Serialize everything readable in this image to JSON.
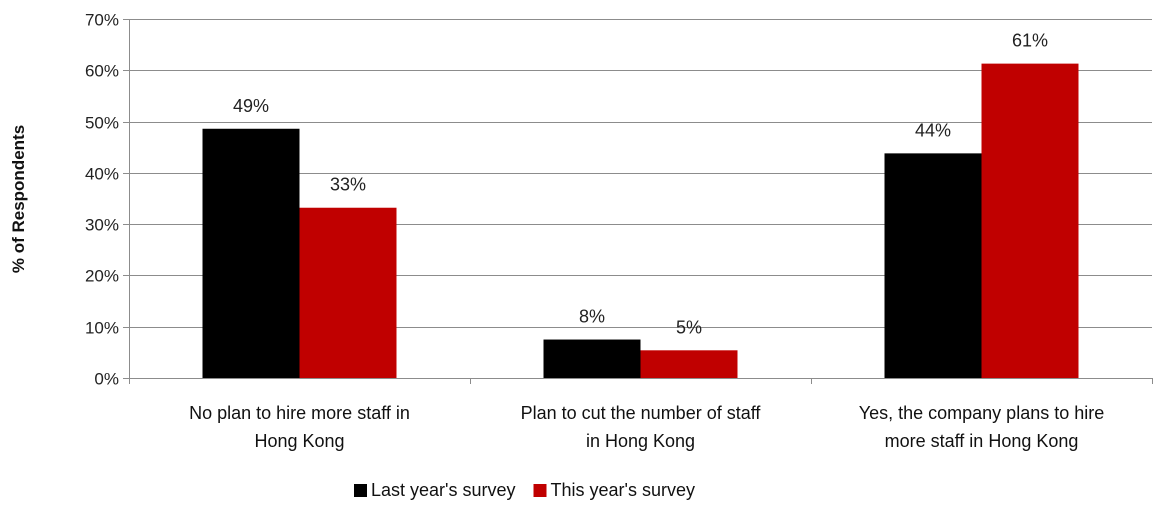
{
  "chart_data": {
    "type": "bar",
    "ylabel": "% of Respondents",
    "ylim": [
      0,
      70
    ],
    "yticks": [
      0,
      10,
      20,
      30,
      40,
      50,
      60,
      70
    ],
    "tick_suffix": "%",
    "grid": true,
    "legend_position": "bottom",
    "categories": [
      [
        "No plan to hire more staff in",
        "Hong Kong"
      ],
      [
        "Plan to cut the number of staff",
        "in Hong Kong"
      ],
      [
        "Yes, the company plans to hire",
        "more staff in Hong Kong"
      ]
    ],
    "series": [
      {
        "name": "Last year's survey",
        "color": "#000000",
        "values": [
          48.6,
          7.5,
          43.8
        ],
        "labels": [
          "49%",
          "8%",
          "44%"
        ]
      },
      {
        "name": "This year's survey",
        "color": "#C00000",
        "values": [
          33.2,
          5.4,
          61.3
        ],
        "labels": [
          "33%",
          "5%",
          "61%"
        ]
      }
    ]
  }
}
